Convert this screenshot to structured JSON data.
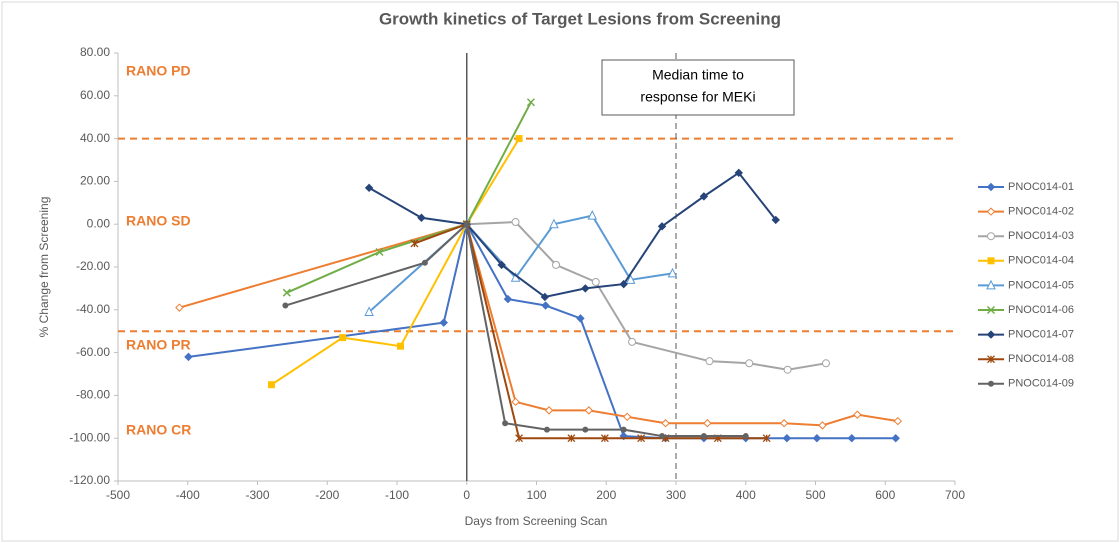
{
  "chart_data": {
    "type": "line",
    "title": "Growth kinetics of Target Lesions from Screening",
    "x_label": "Days from Screening Scan",
    "y_label": "% Change from Screening",
    "xlim": [
      -500,
      700
    ],
    "xticks": [
      -500,
      -400,
      -300,
      -200,
      -100,
      0,
      100,
      200,
      300,
      400,
      500,
      600,
      700
    ],
    "ylim": [
      -120,
      80
    ],
    "yticks": [
      {
        "value": -120,
        "label": "-120.00"
      },
      {
        "value": -100,
        "label": "-100.00"
      },
      {
        "value": -80,
        "label": "-80.00"
      },
      {
        "value": -60,
        "label": "-60.00"
      },
      {
        "value": -40,
        "label": "-40.00"
      },
      {
        "value": -20,
        "label": "-20.00"
      },
      {
        "value": 0,
        "label": "0.00"
      },
      {
        "value": 20,
        "label": "20.00"
      },
      {
        "value": 40,
        "label": "40.00"
      },
      {
        "value": 60,
        "label": "60.00"
      },
      {
        "value": 80,
        "label": "80.00"
      }
    ],
    "reference_lines": [
      {
        "y": 40,
        "color": "#ed7d31"
      },
      {
        "y": -50,
        "color": "#ed7d31"
      }
    ],
    "vertical_line": {
      "x": 300,
      "color": "#595959"
    },
    "zones": [
      "RANO PD",
      "RANO SD",
      "RANO PR",
      "RANO CR"
    ],
    "annotation": [
      "Median time to",
      "response for MEKi"
    ],
    "legend": "right",
    "series": [
      {
        "name": "PNOC014-01",
        "color": "#4472c4",
        "marker": "diamond",
        "x": [
          -399,
          -33,
          0,
          59,
          113,
          163,
          225,
          285,
          340,
          400,
          459,
          502,
          552,
          615
        ],
        "values": [
          -62,
          -46,
          0,
          -35,
          -38,
          -44,
          -99,
          -100,
          -100,
          -100,
          -100,
          -100,
          -100,
          -100
        ]
      },
      {
        "name": "PNOC014-02",
        "color": "#ed7d31",
        "marker": "open-diamond",
        "x": [
          -412,
          0,
          70,
          118,
          175,
          230,
          285,
          345,
          455,
          510,
          560,
          618
        ],
        "values": [
          -39,
          0,
          -83,
          -87,
          -87,
          -90,
          -93,
          -93,
          -93,
          -94,
          -89,
          -92
        ]
      },
      {
        "name": "PNOC014-03",
        "color": "#a5a5a5",
        "marker": "open-circle",
        "x": [
          0,
          70,
          128,
          185,
          237,
          348,
          405,
          460,
          515
        ],
        "values": [
          0,
          1,
          -19,
          -27,
          -55,
          -64,
          -65,
          -68,
          -65
        ]
      },
      {
        "name": "PNOC014-04",
        "color": "#ffc000",
        "marker": "square",
        "x": [
          -280,
          -178,
          -95,
          0,
          75
        ],
        "values": [
          -75,
          -53,
          -57,
          0,
          40
        ]
      },
      {
        "name": "PNOC014-05",
        "color": "#5b9bd5",
        "marker": "open-triangle",
        "x": [
          -140,
          0,
          70,
          125,
          180,
          235,
          295
        ],
        "values": [
          -41,
          0,
          -25,
          0,
          4,
          -26,
          -23
        ]
      },
      {
        "name": "PNOC014-06",
        "color": "#70ad47",
        "marker": "x",
        "x": [
          -258,
          -125,
          0,
          92
        ],
        "values": [
          -32,
          -13,
          0,
          57
        ]
      },
      {
        "name": "PNOC014-07",
        "color": "#264478",
        "marker": "diamond",
        "x": [
          -140,
          -65,
          0,
          50,
          112,
          170,
          225,
          280,
          340,
          390,
          443
        ],
        "values": [
          17,
          3,
          0,
          -19,
          -34,
          -30,
          -28,
          -1,
          13,
          24,
          2
        ]
      },
      {
        "name": "PNOC014-08",
        "color": "#9e480e",
        "marker": "star",
        "x": [
          -75,
          0,
          75,
          150,
          198,
          250,
          285,
          360,
          430
        ],
        "values": [
          -9,
          0,
          -100,
          -100,
          -100,
          -100,
          -100,
          -100,
          -100
        ]
      },
      {
        "name": "PNOC014-09",
        "color": "#636363",
        "marker": "circle",
        "x": [
          -260,
          -60,
          0,
          55,
          115,
          170,
          225,
          280,
          340,
          400
        ],
        "values": [
          -38,
          -18,
          0,
          -93,
          -96,
          -96,
          -96,
          -99,
          -99,
          -99
        ]
      }
    ]
  }
}
